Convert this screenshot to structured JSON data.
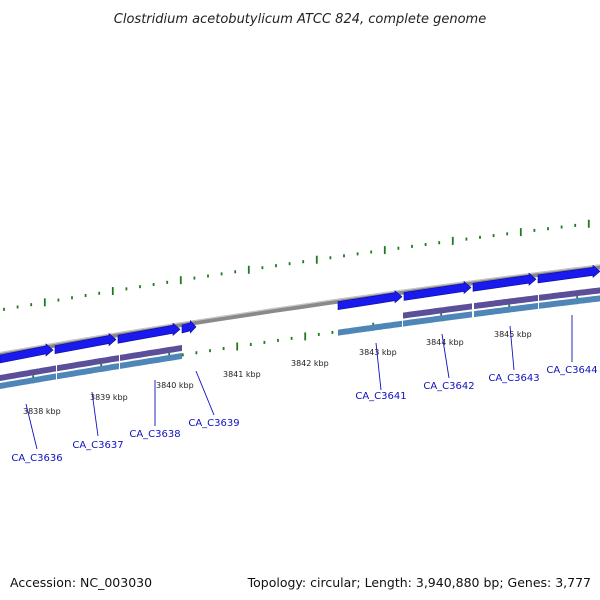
{
  "title": "Clostridium acetobutylicum ATCC 824, complete genome",
  "footer": {
    "accession": "Accession: NC_003030",
    "summary": "Topology: circular; Length: 3,940,880 bp; Genes: 3,777"
  },
  "colors": {
    "backbone": "#8a8a8a",
    "cds": "#1a1aee",
    "gene_track": "#5b4f99",
    "feature_track": "#4f86b8",
    "tick": "#1f7a1f",
    "label_line": "#1010c0"
  },
  "tick_labels": [
    "3838 kbp",
    "3839 kbp",
    "3840 kbp",
    "3841 kbp",
    "3842 kbp",
    "3843 kbp",
    "3844 kbp",
    "3845 kbp"
  ],
  "genes": [
    "CA_C3636",
    "CA_C3637",
    "CA_C3638",
    "CA_C3639",
    "CA_C3641",
    "CA_C3642",
    "CA_C3643",
    "CA_C3644"
  ]
}
